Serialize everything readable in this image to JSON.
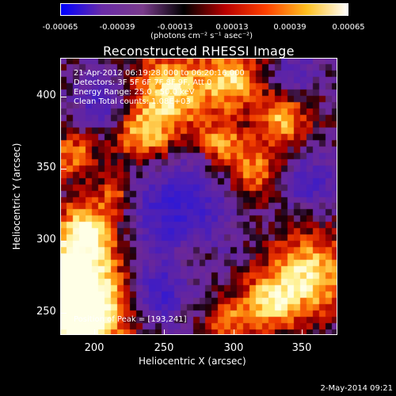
{
  "colorbar": {
    "ticks": [
      "-0.00065",
      "-0.00039",
      "-0.00013",
      "0.00013",
      "0.00039",
      "0.00065"
    ],
    "units": "(photons cm⁻² s⁻¹ asec⁻²)",
    "colors": [
      "#0000ff",
      "#6a2ca8",
      "#7a3c8c",
      "#000000",
      "#b80000",
      "#ff4000",
      "#ffc020",
      "#ffffff"
    ]
  },
  "title": "Reconstructed RHESSI Image",
  "info": {
    "time_range": "21-Apr-2012 06:19:28.000 to 06:20:16.000",
    "detectors": "Detectors: 3F 5F 6F 7F 8F 9F, Att 0",
    "energy": "Energy Range: 25.0 - 50.0 keV",
    "clean": "Clean    Total counts: 1.08E+03",
    "peak": "Position of Peak = [193,241]"
  },
  "axes": {
    "xlabel": "Heliocentric X (arcsec)",
    "ylabel": "Heliocentric Y (arcsec)",
    "xticks": [
      "200",
      "250",
      "300",
      "350"
    ],
    "yticks": [
      "400",
      "350",
      "300",
      "250"
    ]
  },
  "datestamp": "2-May-2014 09:21"
}
